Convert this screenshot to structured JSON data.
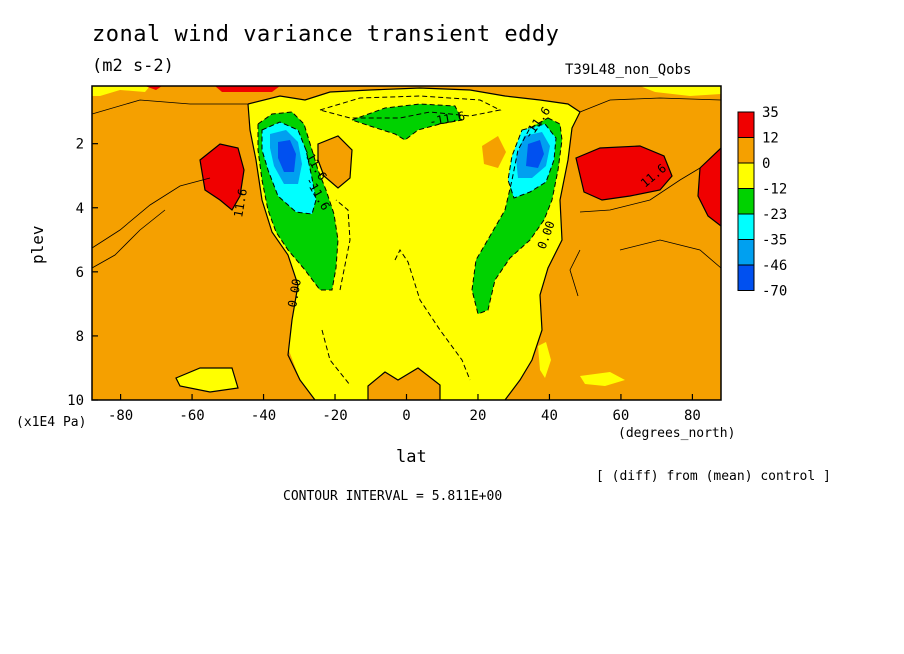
{
  "title": "zonal wind variance transient eddy",
  "subtitle": "(m2 s-2)",
  "run_name": "T39L48_non_Qobs",
  "y_units_note": "(x1E4 Pa)",
  "x_units_note": "(degrees_north)",
  "diff_note": "[ (diff) from (mean) control ]",
  "contour_interval_note": "CONTOUR INTERVAL = 5.811E+00",
  "chart_data": {
    "type": "heatmap",
    "title": "zonal wind variance transient eddy",
    "subtitle": "(m2 s-2)",
    "xlabel": "lat",
    "ylabel": "plev",
    "xlim": [
      -88,
      88
    ],
    "ylim": [
      10,
      0.2
    ],
    "x_ticks": [
      -80,
      -60,
      -40,
      -20,
      0,
      20,
      40,
      60,
      80
    ],
    "x_tick_labels": [
      "-80",
      "-60",
      "-40",
      "-20",
      "0",
      "20",
      "40",
      "60",
      "80"
    ],
    "y_ticks": [
      2,
      4,
      6,
      8,
      10
    ],
    "y_tick_labels": [
      "2",
      "4",
      "6",
      "8",
      "10"
    ],
    "colorbar": {
      "labels": [
        "35",
        "12",
        "0",
        "-12",
        "-23",
        "-35",
        "-46",
        "-70"
      ],
      "colors": [
        "#f00000",
        "#f5a000",
        "#ffff00",
        "#00d200",
        "#00ffff",
        "#00a0f0",
        "#0050f0"
      ]
    },
    "contour_labels": [
      "-11.6",
      "-11.6",
      "-11.6",
      "-11.6",
      "11.6",
      "11.6",
      "0.00",
      "0.00"
    ],
    "features": [
      {
        "name": "SH jet minimum",
        "lat": -35,
        "plev": 2.5,
        "value": -50
      },
      {
        "name": "NH jet minimum",
        "lat": 35,
        "plev": 2.5,
        "value": -46
      },
      {
        "name": "SH high-latitude maximum",
        "lat": -52,
        "plev": 3,
        "value": 14
      },
      {
        "name": "NH high-latitude maximum",
        "lat": 58,
        "plev": 3,
        "value": 14
      },
      {
        "name": "NH polar maximum",
        "lat": 87,
        "plev": 3.5,
        "value": 13
      },
      {
        "name": "Tropical upper minimum",
        "lat": 5,
        "plev": 1.3,
        "value": -14
      }
    ],
    "contour_interval": 5.811
  }
}
